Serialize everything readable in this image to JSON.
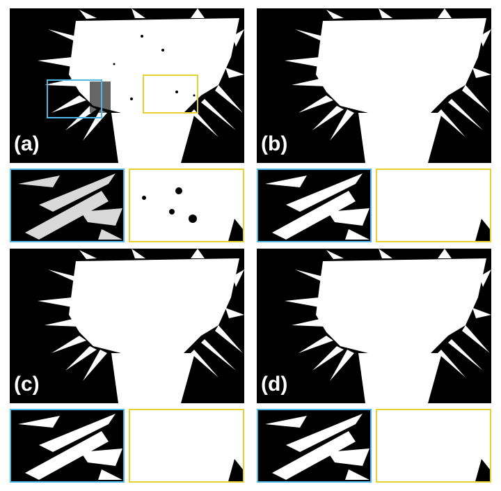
{
  "panels": [
    {
      "label": "(a)",
      "variant": "noisy"
    },
    {
      "label": "(b)",
      "variant": "clean"
    },
    {
      "label": "(c)",
      "variant": "clean"
    },
    {
      "label": "(d)",
      "variant": "clean"
    }
  ],
  "colors": {
    "background": "#000000",
    "foreground": "#ffffff",
    "left_box": "#4fb8e6",
    "right_box": "#e6d22e"
  }
}
